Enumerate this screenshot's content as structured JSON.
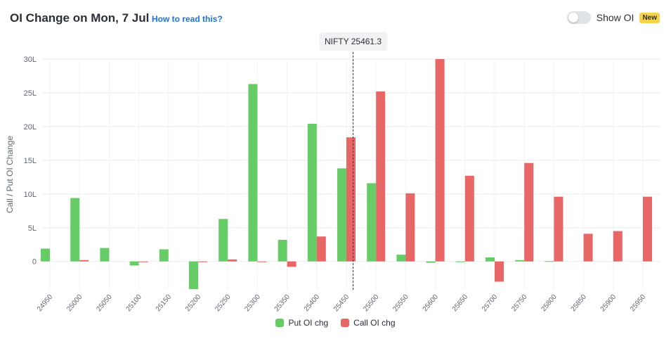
{
  "header": {
    "title": "OI Change on Mon, 7 Jul",
    "help_link": "How to read this?",
    "toggle_label": "Show OI",
    "badge": "New"
  },
  "spot": {
    "label": "NIFTY 25461.3",
    "value": 25461.3
  },
  "colors": {
    "put": "#66cc66",
    "call": "#e86666",
    "grid": "#e8eaed",
    "axis_text": "#5f6670",
    "spot_line": "#333333"
  },
  "chart_data": {
    "type": "bar",
    "ylabel": "Call / Put OI Change",
    "xlabel": "",
    "ylim": [
      -4.2,
      30
    ],
    "yticks": [
      0,
      5,
      10,
      15,
      20,
      25,
      30
    ],
    "ytick_labels": [
      "0",
      "5L",
      "10L",
      "15L",
      "20L",
      "25L",
      "30L"
    ],
    "grid": true,
    "legend": "bottom",
    "categories": [
      "24950",
      "25000",
      "25050",
      "25100",
      "25150",
      "25200",
      "25250",
      "25300",
      "25350",
      "25400",
      "25450",
      "25500",
      "25550",
      "25600",
      "25650",
      "25700",
      "25750",
      "25800",
      "25850",
      "25900",
      "25950"
    ],
    "series": [
      {
        "name": "Put OI chg",
        "values": [
          1.9,
          9.4,
          2.0,
          -0.6,
          1.8,
          -4.1,
          6.3,
          26.3,
          3.2,
          20.4,
          13.8,
          11.6,
          1.0,
          -0.2,
          -0.1,
          0.6,
          0.2,
          0.05,
          0.0,
          0.0,
          0.0
        ]
      },
      {
        "name": "Call OI chg",
        "values": [
          0.0,
          0.2,
          0.0,
          -0.1,
          0.0,
          -0.1,
          0.3,
          -0.1,
          -0.8,
          3.7,
          18.4,
          25.2,
          10.1,
          30.0,
          12.7,
          -3.0,
          14.6,
          9.6,
          4.1,
          4.5,
          9.6
        ]
      }
    ]
  }
}
